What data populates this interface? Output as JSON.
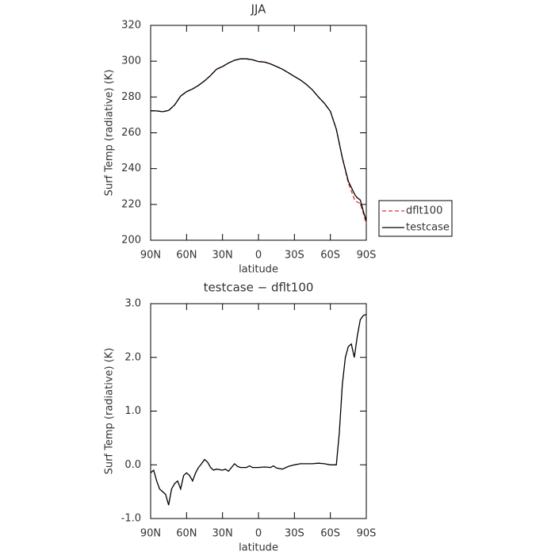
{
  "chart_data": [
    {
      "type": "line",
      "title": "JJA",
      "xlabel": "latitude",
      "ylabel": "Surf Temp (radiative) (K)",
      "x": [
        90,
        85,
        80,
        75,
        70,
        65,
        60,
        55,
        50,
        45,
        40,
        35,
        30,
        25,
        20,
        15,
        10,
        5,
        0,
        -5,
        -10,
        -15,
        -20,
        -25,
        -30,
        -35,
        -40,
        -45,
        -50,
        -55,
        -60,
        -65,
        -70,
        -75,
        -80,
        -82,
        -85,
        -88,
        -90
      ],
      "series": [
        {
          "name": "dflt100",
          "color": "#e0302a",
          "dash": true,
          "values": [
            272.3,
            272.2,
            271.8,
            272.5,
            275.5,
            280.5,
            283,
            284.5,
            286.5,
            289,
            292,
            295.5,
            297,
            299,
            300.5,
            301.3,
            301.3,
            300.8,
            299.8,
            299.5,
            298.5,
            297,
            295.5,
            293.5,
            291.5,
            289.5,
            287,
            284,
            280,
            276.5,
            272,
            262,
            246,
            232,
            223,
            221.5,
            220.5,
            214,
            209
          ]
        },
        {
          "name": "testcase",
          "color": "#000000",
          "dash": false,
          "values": [
            272.3,
            272.2,
            271.8,
            272.5,
            275.5,
            280.5,
            283,
            284.5,
            286.5,
            289,
            292,
            295.5,
            297,
            299,
            300.5,
            301.3,
            301.3,
            300.8,
            299.8,
            299.5,
            298.5,
            297,
            295.5,
            293.5,
            291.5,
            289.5,
            287,
            284,
            280,
            276.5,
            272,
            262,
            246,
            233,
            226,
            224,
            222.5,
            215,
            211
          ]
        }
      ],
      "xlim": [
        90,
        -90
      ],
      "xticks": [
        {
          "value": 90,
          "label": "90N"
        },
        {
          "value": 60,
          "label": "60N"
        },
        {
          "value": 30,
          "label": "30N"
        },
        0,
        {
          "value": -30,
          "label": "30S"
        },
        {
          "value": -60,
          "label": "60S"
        },
        {
          "value": -90,
          "label": "90S"
        }
      ],
      "ylim": [
        200,
        320
      ],
      "yticks": [
        200,
        220,
        240,
        260,
        280,
        300,
        320
      ],
      "legend": "right"
    },
    {
      "type": "line",
      "title": "testcase − dflt100",
      "xlabel": "latitude",
      "ylabel": "Surf Temp (radiative) (K)",
      "x": [
        90,
        87.5,
        85,
        82.5,
        80,
        77.5,
        75,
        72.5,
        70,
        67.5,
        65,
        62.5,
        60,
        57.5,
        55,
        52.5,
        50,
        47.5,
        45,
        42.5,
        40,
        37.5,
        35,
        30,
        27.5,
        25,
        22.5,
        20,
        17.5,
        15,
        10,
        7.5,
        5,
        0,
        -5,
        -10,
        -12.5,
        -15,
        -20,
        -25,
        -30,
        -35,
        -40,
        -45,
        -50,
        -55,
        -60,
        -65,
        -67.5,
        -70,
        -72.5,
        -75,
        -77.5,
        -80,
        -82.5,
        -85,
        -87.5,
        -90
      ],
      "series": [
        {
          "name": "testcase − dflt100",
          "color": "#000000",
          "dash": false,
          "values": [
            -0.15,
            -0.1,
            -0.3,
            -0.45,
            -0.5,
            -0.55,
            -0.75,
            -0.45,
            -0.35,
            -0.3,
            -0.45,
            -0.2,
            -0.15,
            -0.2,
            -0.3,
            -0.15,
            -0.05,
            0.02,
            0.1,
            0.05,
            -0.05,
            -0.1,
            -0.08,
            -0.1,
            -0.08,
            -0.12,
            -0.05,
            0.02,
            -0.03,
            -0.05,
            -0.05,
            -0.02,
            -0.05,
            -0.05,
            -0.04,
            -0.05,
            -0.02,
            -0.06,
            -0.08,
            -0.03,
            0,
            0.02,
            0.02,
            0.02,
            0.03,
            0.02,
            0,
            0,
            0.6,
            1.5,
            2,
            2.2,
            2.25,
            2,
            2.4,
            2.7,
            2.78,
            2.8
          ]
        }
      ],
      "xlim": [
        90,
        -90
      ],
      "xticks": [
        {
          "value": 90,
          "label": "90N"
        },
        {
          "value": 60,
          "label": "60N"
        },
        {
          "value": 30,
          "label": "30N"
        },
        0,
        {
          "value": -30,
          "label": "30S"
        },
        {
          "value": -60,
          "label": "60S"
        },
        {
          "value": -90,
          "label": "90S"
        }
      ],
      "ylim": [
        -1,
        3
      ],
      "yticks": [
        {
          "value": -1,
          "label": "-1.0"
        },
        {
          "value": 0,
          "label": "0.0"
        },
        {
          "value": 1,
          "label": "1.0"
        },
        {
          "value": 2,
          "label": "2.0"
        },
        {
          "value": 3,
          "label": "3.0"
        }
      ]
    }
  ]
}
